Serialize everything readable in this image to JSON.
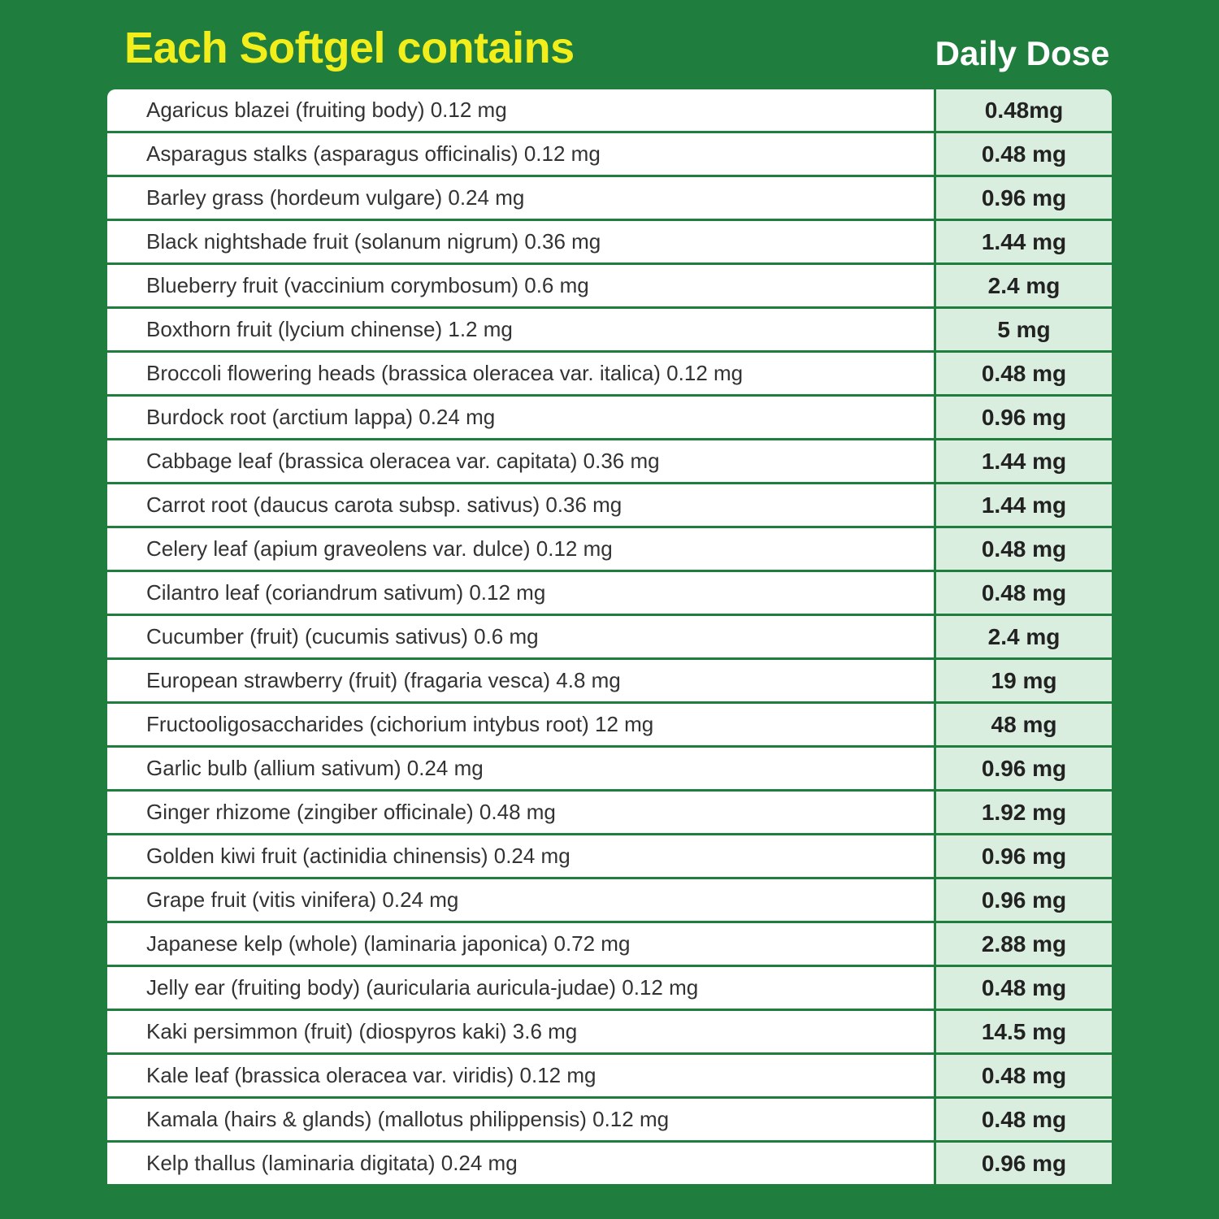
{
  "header": {
    "title": "Each Softgel contains",
    "dose_label": "Daily Dose"
  },
  "table": {
    "rows": [
      [
        "Agaricus blazei (fruiting body) 0.12 mg",
        "0.48mg"
      ],
      [
        "Asparagus stalks (asparagus officinalis) 0.12 mg",
        "0.48 mg"
      ],
      [
        "Barley grass (hordeum vulgare) 0.24 mg",
        "0.96 mg"
      ],
      [
        "Black nightshade fruit (solanum nigrum) 0.36 mg",
        "1.44 mg"
      ],
      [
        "Blueberry fruit (vaccinium corymbosum) 0.6 mg",
        "2.4 mg"
      ],
      [
        "Boxthorn fruit (lycium chinense) 1.2 mg",
        "5 mg"
      ],
      [
        "Broccoli flowering heads (brassica oleracea var. italica) 0.12 mg",
        "0.48 mg"
      ],
      [
        "Burdock root (arctium lappa) 0.24 mg",
        "0.96 mg"
      ],
      [
        "Cabbage leaf (brassica oleracea var. capitata) 0.36 mg",
        "1.44 mg"
      ],
      [
        "Carrot root (daucus carota subsp. sativus) 0.36 mg",
        "1.44 mg"
      ],
      [
        "Celery leaf (apium graveolens var. dulce) 0.12 mg",
        "0.48 mg"
      ],
      [
        "Cilantro leaf (coriandrum sativum) 0.12 mg",
        "0.48 mg"
      ],
      [
        "Cucumber (fruit) (cucumis sativus) 0.6 mg",
        "2.4 mg"
      ],
      [
        "European strawberry (fruit) (fragaria vesca) 4.8 mg",
        "19 mg"
      ],
      [
        "Fructooligosaccharides (cichorium intybus root) 12 mg",
        "48 mg"
      ],
      [
        "Garlic bulb (allium sativum) 0.24 mg",
        "0.96 mg"
      ],
      [
        "Ginger rhizome (zingiber officinale) 0.48 mg",
        "1.92 mg"
      ],
      [
        "Golden kiwi fruit (actinidia chinensis) 0.24 mg",
        "0.96 mg"
      ],
      [
        "Grape fruit (vitis vinifera) 0.24 mg",
        "0.96 mg"
      ],
      [
        "Japanese kelp (whole) (laminaria japonica) 0.72 mg",
        "2.88 mg"
      ],
      [
        "Jelly ear (fruiting body) (auricularia auricula-judae) 0.12 mg",
        "0.48 mg"
      ],
      [
        "Kaki persimmon (fruit) (diospyros kaki) 3.6 mg",
        "14.5 mg"
      ],
      [
        "Kale leaf (brassica oleracea var. viridis) 0.12 mg",
        "0.48 mg"
      ],
      [
        "Kamala (hairs & glands) (mallotus philippensis) 0.12 mg",
        "0.48 mg"
      ],
      [
        "Kelp thallus (laminaria digitata) 0.24 mg",
        "0.96 mg"
      ]
    ]
  }
}
